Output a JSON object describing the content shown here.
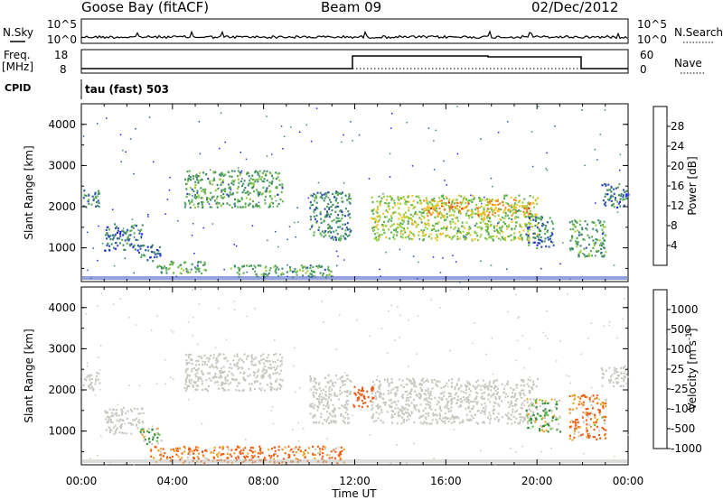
{
  "header": {
    "site": "Goose Bay (fitACF)",
    "beam": "Beam 09",
    "date": "02/Dec/2012"
  },
  "strips": {
    "nsky_label": "N.Sky",
    "nsearch_label": "N.Search",
    "noise_ticks_left": [
      "10^5",
      "10^0"
    ],
    "noise_ticks_right": [
      "10^5",
      "10^0"
    ],
    "freq_label": "Freq.",
    "freq_unit": "[MHz]",
    "freq_ticks": [
      "18",
      "8"
    ],
    "nave_label": "Nave",
    "nave_ticks": [
      "60",
      "0"
    ],
    "cpid_label": "CPID",
    "cpid_value": "tau (fast) 503"
  },
  "chart_data": [
    {
      "type": "heatmap",
      "title": "",
      "xlabel": "Time UT",
      "ylabel": "Slant Range [km]",
      "x_range": [
        "00:00",
        "24:00"
      ],
      "ylim": [
        180,
        4500
      ],
      "x_ticks": [
        "00:00",
        "04:00",
        "08:00",
        "12:00",
        "16:00",
        "20:00",
        "00:00"
      ],
      "y_ticks": [
        1000,
        2000,
        3000,
        4000
      ],
      "colorbar": {
        "label": "Power [dB]",
        "ticks": [
          "4",
          "8",
          "12",
          "16",
          "20",
          "24",
          "28"
        ],
        "range": [
          0,
          30
        ],
        "colors": [
          "#1a1aff",
          "#2a4fb0",
          "#3f8a6a",
          "#58b050",
          "#9ad040",
          "#f0c020",
          "#f08020",
          "#e03010"
        ]
      },
      "echo_regions": [
        {
          "t0": 0.0,
          "t1": 0.8,
          "r0": 2000,
          "r1": 2450,
          "level": 8
        },
        {
          "t0": 1.0,
          "t1": 2.7,
          "r0": 950,
          "r1": 1600,
          "level": 8
        },
        {
          "t0": 2.5,
          "t1": 3.5,
          "r0": 700,
          "r1": 1100,
          "level": 8
        },
        {
          "t0": 3.3,
          "t1": 5.5,
          "r0": 400,
          "r1": 700,
          "level": 12
        },
        {
          "t0": 4.5,
          "t1": 8.8,
          "r0": 2000,
          "r1": 2900,
          "level": 12
        },
        {
          "t0": 6.5,
          "t1": 11.0,
          "r0": 300,
          "r1": 600,
          "level": 12
        },
        {
          "t0": 10.0,
          "t1": 11.8,
          "r0": 1200,
          "r1": 2400,
          "level": 10
        },
        {
          "t0": 12.7,
          "t1": 20.0,
          "r0": 1200,
          "r1": 2300,
          "level": 16
        },
        {
          "t0": 15.0,
          "t1": 19.7,
          "r0": 1800,
          "r1": 2200,
          "level": 22
        },
        {
          "t0": 19.5,
          "t1": 20.7,
          "r0": 1000,
          "r1": 1800,
          "level": 8
        },
        {
          "t0": 21.4,
          "t1": 23.0,
          "r0": 800,
          "r1": 1700,
          "level": 12
        },
        {
          "t0": 22.8,
          "t1": 24.0,
          "r0": 2000,
          "r1": 2600,
          "level": 8
        }
      ]
    },
    {
      "type": "heatmap",
      "title": "",
      "xlabel": "Time UT",
      "ylabel": "Slant Range [km]",
      "x_range": [
        "00:00",
        "24:00"
      ],
      "ylim": [
        180,
        4500
      ],
      "x_ticks": [
        "00:00",
        "04:00",
        "08:00",
        "12:00",
        "16:00",
        "20:00",
        "00:00"
      ],
      "y_ticks": [
        1000,
        2000,
        3000,
        4000
      ],
      "colorbar": {
        "label": "Velocity [m s^-1]",
        "ticks": [
          "1000",
          "500",
          "100",
          "25",
          "-25",
          "-100",
          "-500",
          "-1000"
        ],
        "range": [
          -1000,
          1000
        ],
        "colors": [
          "#e01010",
          "#f05a10",
          "#f0a020",
          "#c8c8c0",
          "#60c030",
          "#2e8a3a",
          "#2a50b0",
          "#1a1aff"
        ]
      },
      "echo_regions": [
        {
          "t0": 0.0,
          "t1": 0.8,
          "r0": 2000,
          "r1": 2450,
          "velocity": 0
        },
        {
          "t0": 1.0,
          "t1": 2.7,
          "r0": 950,
          "r1": 1600,
          "velocity": 0
        },
        {
          "t0": 2.5,
          "t1": 3.5,
          "r0": 700,
          "r1": 1100,
          "velocity": 60
        },
        {
          "t0": 3.0,
          "t1": 11.5,
          "r0": 250,
          "r1": 650,
          "velocity": -150
        },
        {
          "t0": 4.5,
          "t1": 8.8,
          "r0": 2000,
          "r1": 2900,
          "velocity": 0
        },
        {
          "t0": 10.0,
          "t1": 11.8,
          "r0": 1200,
          "r1": 2400,
          "velocity": 0
        },
        {
          "t0": 12.7,
          "t1": 20.0,
          "r0": 1200,
          "r1": 2300,
          "velocity": 0
        },
        {
          "t0": 11.8,
          "t1": 12.8,
          "r0": 1600,
          "r1": 2100,
          "velocity": -300
        },
        {
          "t0": 19.5,
          "t1": 21.0,
          "r0": 1000,
          "r1": 1800,
          "velocity": 80
        },
        {
          "t0": 21.4,
          "t1": 23.0,
          "r0": 800,
          "r1": 1900,
          "velocity": -120
        },
        {
          "t0": 22.8,
          "t1": 24.0,
          "r0": 2100,
          "r1": 2600,
          "velocity": 0
        }
      ]
    }
  ]
}
